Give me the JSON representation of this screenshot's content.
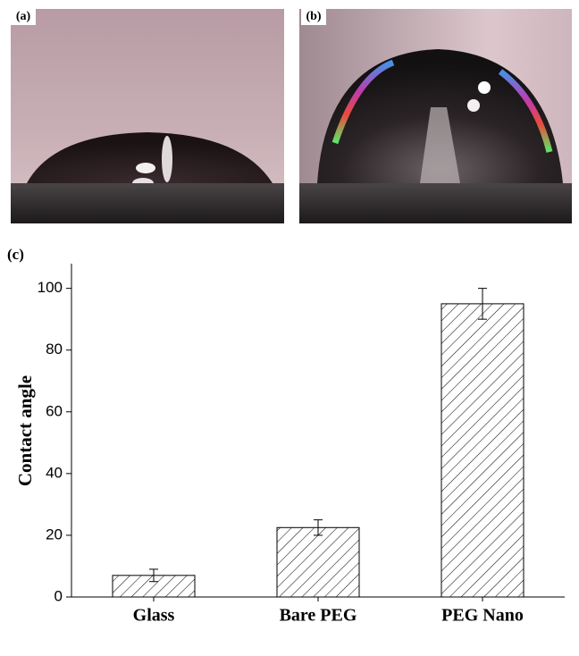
{
  "panels": {
    "a": "(a)",
    "b": "(b)"
  },
  "chart_data": {
    "type": "bar",
    "panel_label": "(c)",
    "y_label": "Contact angle",
    "categories": [
      "Glass",
      "Bare PEG",
      "PEG Nano"
    ],
    "values": [
      7,
      22.5,
      95
    ],
    "errors": [
      2,
      2.5,
      5
    ],
    "ylim": [
      0,
      108
    ],
    "yticks": [
      0,
      20,
      40,
      60,
      80,
      100
    ],
    "color": "#000000",
    "hatch": true,
    "grid": false
  }
}
